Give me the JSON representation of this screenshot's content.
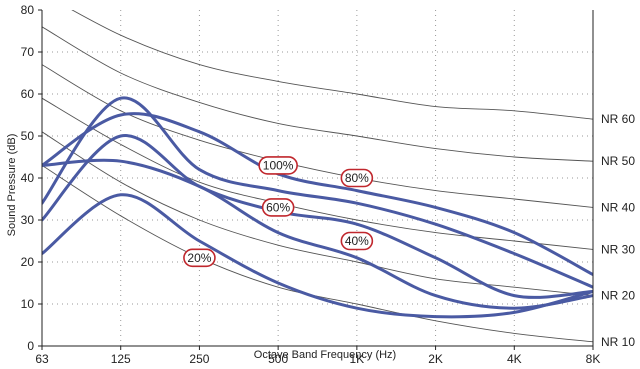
{
  "chart_data": {
    "type": "line",
    "xlabel": "Octave Band Frequency (Hz)",
    "ylabel": "Sound Pressure (dB)",
    "x_categories": [
      "63",
      "125",
      "250",
      "500",
      "1K",
      "2K",
      "4K",
      "8K"
    ],
    "x_scale": "log2 (octave bands)",
    "ylim": [
      0,
      80
    ],
    "y_ticks": [
      "0",
      "10",
      "20",
      "30",
      "40",
      "50",
      "60",
      "70",
      "80"
    ],
    "grid": "dotted",
    "nr_curves": [
      {
        "label": "NR 10",
        "values": [
          43,
          31,
          21,
          14,
          10,
          6,
          3,
          1
        ]
      },
      {
        "label": "NR 20",
        "values": [
          51,
          39,
          30,
          24,
          20,
          16,
          14,
          12
        ]
      },
      {
        "label": "NR 30",
        "values": [
          59,
          48,
          39,
          34,
          30,
          27,
          25,
          23
        ]
      },
      {
        "label": "NR 40",
        "values": [
          67,
          56,
          49,
          44,
          40,
          37,
          35,
          33
        ]
      },
      {
        "label": "NR 50",
        "values": [
          76,
          65,
          58,
          53,
          50,
          47,
          45,
          44
        ]
      },
      {
        "label": "NR 60",
        "values": [
          84,
          74,
          67,
          63,
          60,
          57,
          56,
          54
        ]
      }
    ],
    "series": [
      {
        "name": "100%",
        "values": [
          34,
          59,
          42,
          37,
          34,
          29,
          22,
          14
        ]
      },
      {
        "name": "80%",
        "values": [
          43,
          55,
          51,
          41,
          37,
          33,
          27,
          17
        ]
      },
      {
        "name": "60%",
        "values": [
          30,
          50,
          38,
          32,
          29,
          21,
          12,
          13
        ]
      },
      {
        "name": "40%",
        "values": [
          43,
          44,
          38,
          27,
          21,
          12,
          9,
          12
        ]
      },
      {
        "name": "20%",
        "values": [
          22,
          36,
          25,
          15,
          9,
          7,
          8,
          13
        ]
      }
    ],
    "series_label_points": [
      {
        "text": "100%",
        "x": "500",
        "y": 43
      },
      {
        "text": "80%",
        "x": "1K",
        "y": 40
      },
      {
        "text": "60%",
        "x": "500",
        "y": 33
      },
      {
        "text": "40%",
        "x": "1K",
        "y": 25
      },
      {
        "text": "20%",
        "x": "250",
        "y": 21
      }
    ],
    "series_color": "#4a5aa3",
    "nr_color": "#555555",
    "label_border_color": "#c0272d"
  }
}
